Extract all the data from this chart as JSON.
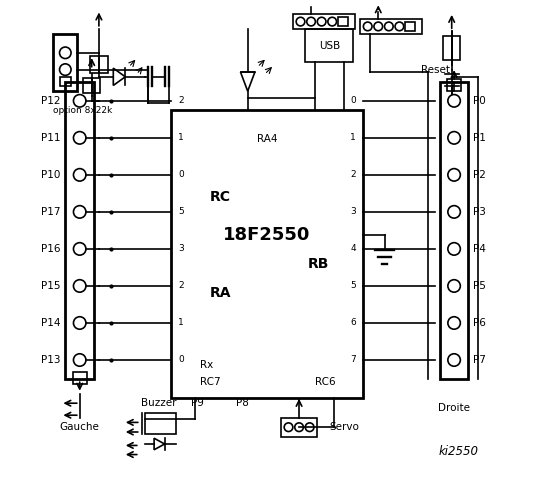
{
  "bg_color": "#ffffff",
  "title": "ki2550",
  "chip_label": "18F2550",
  "chip_sublabel": "RA4",
  "left_labels": [
    "P12",
    "P11",
    "P10",
    "P17",
    "P16",
    "P15",
    "P14",
    "P13"
  ],
  "right_labels": [
    "P0",
    "P1",
    "P2",
    "P3",
    "P4",
    "P5",
    "P6",
    "P7"
  ],
  "rc_pins": [
    "2",
    "1",
    "0",
    "5",
    "3",
    "2",
    "1",
    "0"
  ],
  "rb_pins": [
    "0",
    "1",
    "2",
    "3",
    "4",
    "5",
    "6",
    "7"
  ],
  "text_rc": "RC",
  "text_ra": "RA",
  "text_rb": "RB",
  "text_rx": "Rx",
  "text_rc7": "RC7",
  "text_rc6": "RC6",
  "text_gauche": "Gauche",
  "text_droite": "Droite",
  "text_buzzer": "Buzzer",
  "text_p9": "P9",
  "text_p8": "P8",
  "text_servo": "Servo",
  "text_usb": "USB",
  "text_reset": "Reset",
  "text_option": "option 8x22k"
}
